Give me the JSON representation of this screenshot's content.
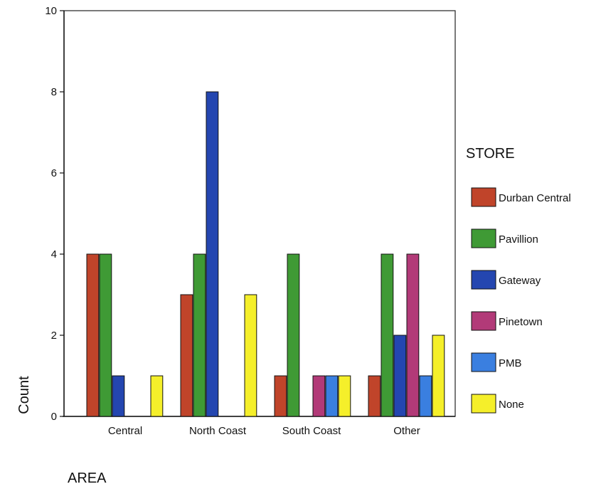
{
  "chart_data": {
    "type": "bar",
    "categories": [
      "Central",
      "North Coast",
      "South Coast",
      "Other"
    ],
    "series": [
      {
        "name": "Durban Central",
        "color": "#c0442a",
        "values": [
          4,
          3,
          1,
          1
        ]
      },
      {
        "name": "Pavillion",
        "color": "#3f9a35",
        "values": [
          4,
          4,
          4,
          4
        ]
      },
      {
        "name": "Gateway",
        "color": "#2446b0",
        "values": [
          1,
          8,
          0,
          2
        ]
      },
      {
        "name": "Pinetown",
        "color": "#b23a78",
        "values": [
          0,
          0,
          1,
          4
        ]
      },
      {
        "name": "PMB",
        "color": "#3a7fe0",
        "values": [
          0,
          0,
          1,
          1
        ]
      },
      {
        "name": "None",
        "color": "#f5ef2a",
        "values": [
          1,
          3,
          1,
          2
        ]
      }
    ],
    "yticks": [
      "0",
      "2",
      "4",
      "6",
      "8",
      "10"
    ],
    "ylim": [
      0,
      10
    ],
    "xlabel": "AREA",
    "ylabel": "Count",
    "legend_title": "STORE",
    "legend_position": "right",
    "grid": false
  }
}
